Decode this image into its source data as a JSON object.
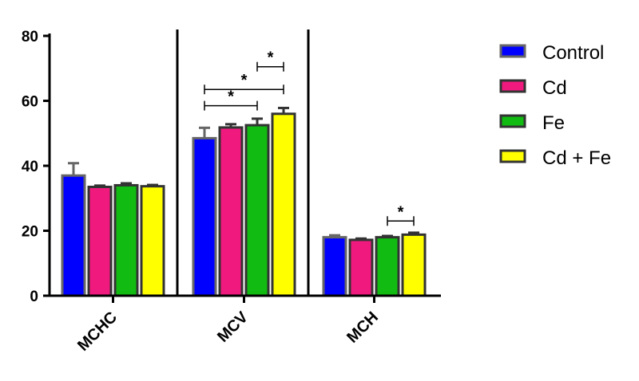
{
  "chart_data": {
    "type": "bar",
    "title": "",
    "xlabel": "",
    "ylabel": "",
    "ylim": [
      0,
      80
    ],
    "yticks": [
      "0",
      "20",
      "40",
      "60",
      "80"
    ],
    "categories": [
      "MCHC",
      "MCV",
      "MCH"
    ],
    "series": [
      {
        "name": "Control",
        "color": "#0000ff",
        "values": [
          37,
          48.5,
          18
        ],
        "errors": [
          3.8,
          3.2,
          0.6
        ]
      },
      {
        "name": "Cd",
        "color": "#f0197e",
        "values": [
          33.5,
          51.8,
          17.2
        ],
        "errors": [
          0.4,
          1.0,
          0.4
        ]
      },
      {
        "name": "Fe",
        "color": "#11bb11",
        "values": [
          34,
          52.5,
          18
        ],
        "errors": [
          0.6,
          2.0,
          0.4
        ]
      },
      {
        "name": "Cd + Fe",
        "color": "#ffff00",
        "values": [
          33.7,
          56,
          18.8
        ],
        "errors": [
          0.4,
          1.8,
          0.6
        ]
      }
    ],
    "significance": [
      {
        "category": "MCV",
        "from": "Control",
        "to": "Fe",
        "label": "*"
      },
      {
        "category": "MCV",
        "from": "Control",
        "to": "Cd + Fe",
        "label": "*"
      },
      {
        "category": "MCV",
        "from": "Fe",
        "to": "Cd + Fe",
        "label": "*"
      },
      {
        "category": "MCH",
        "from": "Fe",
        "to": "Cd + Fe",
        "label": "*"
      }
    ],
    "legend_position": "top-right",
    "grid": false
  }
}
